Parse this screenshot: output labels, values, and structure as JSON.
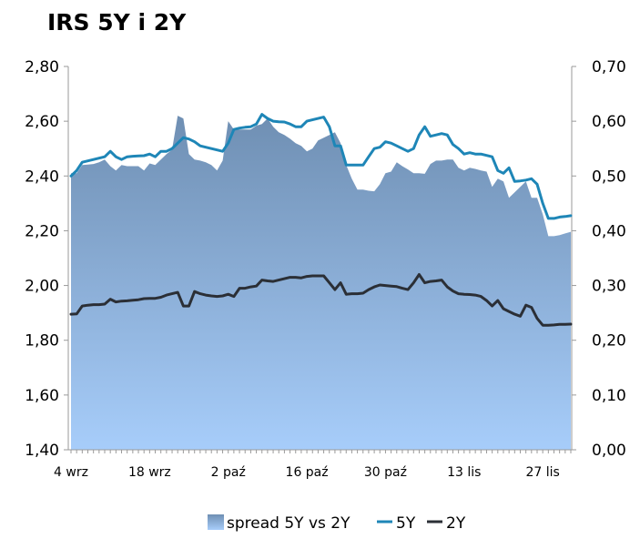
{
  "chart_data": {
    "type": "line",
    "title": "IRS 5Y i 2Y",
    "x_tick_labels": [
      "4 wrz",
      "18 wrz",
      "2 paź",
      "16 paź",
      "30 paź",
      "13 lis",
      "27 lis"
    ],
    "left_axis": {
      "ylim": [
        1.4,
        2.8
      ],
      "tick_labels": [
        "1,40",
        "1,60",
        "1,80",
        "2,00",
        "2,20",
        "2,40",
        "2,60",
        "2,80"
      ]
    },
    "right_axis": {
      "ylim": [
        0.0,
        0.7
      ],
      "tick_labels": [
        "0,00",
        "0,10",
        "0,20",
        "0,30",
        "0,40",
        "0,50",
        "0,60",
        "0,70"
      ]
    },
    "grid": false,
    "legend_position": "bottom",
    "colors": {
      "spread_top": "#6f8fb3",
      "spread_bottom": "#a7cdfa",
      "line_5y": "#1e86b7",
      "line_2y": "#2b2f36",
      "axis": "#9a9a9a"
    },
    "x": [
      0,
      1,
      2,
      3,
      4,
      5,
      6,
      7,
      8,
      9,
      10,
      11,
      12,
      13,
      14,
      15,
      16,
      17,
      18,
      19,
      20,
      21,
      22,
      23,
      24,
      25,
      26,
      27,
      28,
      29,
      30,
      31,
      32,
      33,
      34,
      35,
      36,
      37,
      38,
      39,
      40,
      41,
      42,
      43,
      44,
      45,
      46,
      47,
      48,
      49,
      50,
      51,
      52,
      53,
      54,
      55,
      56,
      57,
      58,
      59,
      60,
      61,
      62,
      63,
      64,
      65,
      66,
      67,
      68,
      69,
      70,
      71,
      72,
      73,
      74,
      75,
      76,
      77,
      78,
      79,
      80,
      81,
      82,
      83,
      84,
      85,
      86,
      87,
      88,
      89
    ],
    "series": [
      {
        "name": "spread 5Y vs 2Y",
        "axis": "right",
        "style": "area",
        "values": [
          0.505,
          0.505,
          0.52,
          0.521,
          0.522,
          0.525,
          0.53,
          0.518,
          0.51,
          0.52,
          0.518,
          0.518,
          0.518,
          0.51,
          0.523,
          0.52,
          0.53,
          0.54,
          0.548,
          0.61,
          0.605,
          0.54,
          0.53,
          0.528,
          0.525,
          0.52,
          0.51,
          0.528,
          0.6,
          0.585,
          0.585,
          0.585,
          0.585,
          0.592,
          0.595,
          0.605,
          0.59,
          0.58,
          0.575,
          0.568,
          0.56,
          0.555,
          0.545,
          0.55,
          0.565,
          0.57,
          0.575,
          0.58,
          0.56,
          0.52,
          0.495,
          0.475,
          0.475,
          0.473,
          0.472,
          0.485,
          0.505,
          0.508,
          0.525,
          0.518,
          0.512,
          0.505,
          0.505,
          0.504,
          0.522,
          0.528,
          0.528,
          0.53,
          0.53,
          0.515,
          0.51,
          0.515,
          0.513,
          0.51,
          0.508,
          0.48,
          0.495,
          0.49,
          0.46,
          0.47,
          0.48,
          0.49,
          0.46,
          0.46,
          0.43,
          0.39,
          0.39,
          0.392,
          0.395,
          0.398
        ]
      },
      {
        "name": "5Y",
        "axis": "left",
        "style": "line",
        "values": [
          2.4,
          2.42,
          2.45,
          2.455,
          2.46,
          2.465,
          2.47,
          2.49,
          2.47,
          2.46,
          2.47,
          2.472,
          2.473,
          2.474,
          2.48,
          2.47,
          2.49,
          2.49,
          2.5,
          2.52,
          2.54,
          2.535,
          2.525,
          2.51,
          2.505,
          2.5,
          2.495,
          2.49,
          2.52,
          2.57,
          2.575,
          2.578,
          2.58,
          2.59,
          2.625,
          2.61,
          2.6,
          2.598,
          2.597,
          2.59,
          2.58,
          2.58,
          2.6,
          2.605,
          2.61,
          2.615,
          2.58,
          2.51,
          2.51,
          2.44,
          2.44,
          2.44,
          2.44,
          2.47,
          2.5,
          2.505,
          2.525,
          2.52,
          2.51,
          2.5,
          2.49,
          2.5,
          2.55,
          2.58,
          2.545,
          2.55,
          2.555,
          2.55,
          2.515,
          2.5,
          2.48,
          2.485,
          2.48,
          2.48,
          2.475,
          2.47,
          2.42,
          2.41,
          2.43,
          2.38,
          2.382,
          2.385,
          2.39,
          2.37,
          2.3,
          2.245,
          2.245,
          2.25,
          2.252,
          2.255
        ]
      },
      {
        "name": "2Y",
        "axis": "left",
        "style": "line",
        "values": [
          1.895,
          1.896,
          1.925,
          1.928,
          1.93,
          1.93,
          1.932,
          1.95,
          1.94,
          1.943,
          1.944,
          1.946,
          1.948,
          1.952,
          1.953,
          1.953,
          1.957,
          1.965,
          1.97,
          1.975,
          1.925,
          1.925,
          1.978,
          1.97,
          1.965,
          1.962,
          1.96,
          1.962,
          1.968,
          1.96,
          1.99,
          1.99,
          1.995,
          1.998,
          2.02,
          2.017,
          2.015,
          2.02,
          2.025,
          2.03,
          2.03,
          2.028,
          2.033,
          2.035,
          2.035,
          2.035,
          2.01,
          1.985,
          2.01,
          1.968,
          1.97,
          1.97,
          1.972,
          1.985,
          1.995,
          2.002,
          2.0,
          1.998,
          1.996,
          1.99,
          1.985,
          2.01,
          2.04,
          2.01,
          2.015,
          2.017,
          2.02,
          1.995,
          1.98,
          1.97,
          1.968,
          1.967,
          1.965,
          1.96,
          1.945,
          1.925,
          1.945,
          1.915,
          1.905,
          1.895,
          1.888,
          1.928,
          1.92,
          1.88,
          1.855,
          1.855,
          1.856,
          1.858,
          1.858,
          1.859
        ]
      }
    ]
  }
}
